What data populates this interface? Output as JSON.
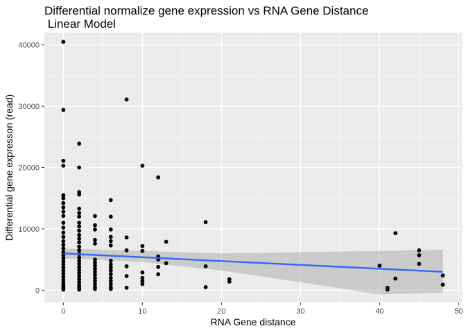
{
  "chart_data": {
    "type": "scatter",
    "title": "Differential normalize gene expression vs RNA Gene Distance\n Linear Model",
    "xlabel": "RNA Gene distance",
    "ylabel": "Differential gene expresson (read)",
    "xlim": [
      -2.4,
      50.4
    ],
    "ylim": [
      -2000,
      42000
    ],
    "xticks": [
      0,
      10,
      20,
      30,
      40,
      50
    ],
    "yticks": [
      0,
      10000,
      20000,
      30000,
      40000
    ],
    "grid": true,
    "legend": "none",
    "points": [
      [
        0,
        40500
      ],
      [
        0,
        29400
      ],
      [
        0,
        21100
      ],
      [
        0,
        20300
      ],
      [
        0,
        15500
      ],
      [
        0,
        15000
      ],
      [
        0,
        14200
      ],
      [
        0,
        13500
      ],
      [
        0,
        12800
      ],
      [
        0,
        12100
      ],
      [
        0,
        11000
      ],
      [
        0,
        10200
      ],
      [
        0,
        9400
      ],
      [
        0,
        8700
      ],
      [
        0,
        8000
      ],
      [
        0,
        7400
      ],
      [
        0,
        6800
      ],
      [
        0,
        6200
      ],
      [
        0,
        5700
      ],
      [
        0,
        5200
      ],
      [
        0,
        4700
      ],
      [
        0,
        4200
      ],
      [
        0,
        3700
      ],
      [
        0,
        3200
      ],
      [
        0,
        2700
      ],
      [
        0,
        2200
      ],
      [
        0,
        1700
      ],
      [
        0,
        1200
      ],
      [
        0,
        800
      ],
      [
        0,
        400
      ],
      [
        0,
        100
      ],
      [
        2,
        23900
      ],
      [
        2,
        20000
      ],
      [
        2,
        16000
      ],
      [
        2,
        15600
      ],
      [
        2,
        13300
      ],
      [
        2,
        12600
      ],
      [
        2,
        12000
      ],
      [
        2,
        11000
      ],
      [
        2,
        10400
      ],
      [
        2,
        9700
      ],
      [
        2,
        9000
      ],
      [
        2,
        8400
      ],
      [
        2,
        7800
      ],
      [
        2,
        7100
      ],
      [
        2,
        6500
      ],
      [
        2,
        5900
      ],
      [
        2,
        5300
      ],
      [
        2,
        4800
      ],
      [
        2,
        4300
      ],
      [
        2,
        3800
      ],
      [
        2,
        3300
      ],
      [
        2,
        2800
      ],
      [
        2,
        2300
      ],
      [
        2,
        1800
      ],
      [
        2,
        1300
      ],
      [
        2,
        800
      ],
      [
        2,
        400
      ],
      [
        2,
        100
      ],
      [
        4,
        12100
      ],
      [
        4,
        10600
      ],
      [
        4,
        9900
      ],
      [
        4,
        8200
      ],
      [
        4,
        7600
      ],
      [
        4,
        5000
      ],
      [
        4,
        4500
      ],
      [
        4,
        4000
      ],
      [
        4,
        3500
      ],
      [
        4,
        3000
      ],
      [
        4,
        2500
      ],
      [
        4,
        2000
      ],
      [
        4,
        1500
      ],
      [
        4,
        1000
      ],
      [
        4,
        500
      ],
      [
        4,
        200
      ],
      [
        6,
        14700
      ],
      [
        6,
        12000
      ],
      [
        6,
        9900
      ],
      [
        6,
        8700
      ],
      [
        6,
        8000
      ],
      [
        6,
        7300
      ],
      [
        6,
        4800
      ],
      [
        6,
        4200
      ],
      [
        6,
        3700
      ],
      [
        6,
        3200
      ],
      [
        6,
        2600
      ],
      [
        6,
        2000
      ],
      [
        6,
        1500
      ],
      [
        6,
        1000
      ],
      [
        6,
        500
      ],
      [
        6,
        200
      ],
      [
        8,
        31100
      ],
      [
        8,
        8600
      ],
      [
        8,
        6500
      ],
      [
        8,
        3900
      ],
      [
        8,
        2300
      ],
      [
        8,
        400
      ],
      [
        10,
        20300
      ],
      [
        10,
        7200
      ],
      [
        10,
        6400
      ],
      [
        10,
        2900
      ],
      [
        10,
        2000
      ],
      [
        10,
        1500
      ],
      [
        10,
        1000
      ],
      [
        12,
        18400
      ],
      [
        12,
        5500
      ],
      [
        12,
        5000
      ],
      [
        12,
        3800
      ],
      [
        12,
        2600
      ],
      [
        13,
        7900
      ],
      [
        13,
        4400
      ],
      [
        18,
        11100
      ],
      [
        18,
        3900
      ],
      [
        18,
        500
      ],
      [
        21,
        1800
      ],
      [
        21,
        1400
      ],
      [
        40,
        4000
      ],
      [
        41,
        400
      ],
      [
        41,
        100
      ],
      [
        42,
        9300
      ],
      [
        42,
        1900
      ],
      [
        45,
        6500
      ],
      [
        45,
        5700
      ],
      [
        45,
        4300
      ],
      [
        48,
        2400
      ],
      [
        48,
        900
      ]
    ],
    "fit": {
      "method": "lm",
      "color": "#3366FF",
      "line": [
        [
          0,
          6000
        ],
        [
          48,
          3000
        ]
      ],
      "ribbon": {
        "x": [
          0,
          10,
          20,
          30,
          40,
          48
        ],
        "lower": [
          5200,
          4600,
          3200,
          1300,
          -700,
          -400
        ],
        "upper": [
          6800,
          6400,
          6000,
          6200,
          6400,
          6600
        ]
      }
    },
    "colors": {
      "panel": "#EBEBEB",
      "grid": "#FFFFFF",
      "points": "#000000",
      "ribbon": "#BDBDBD"
    }
  }
}
